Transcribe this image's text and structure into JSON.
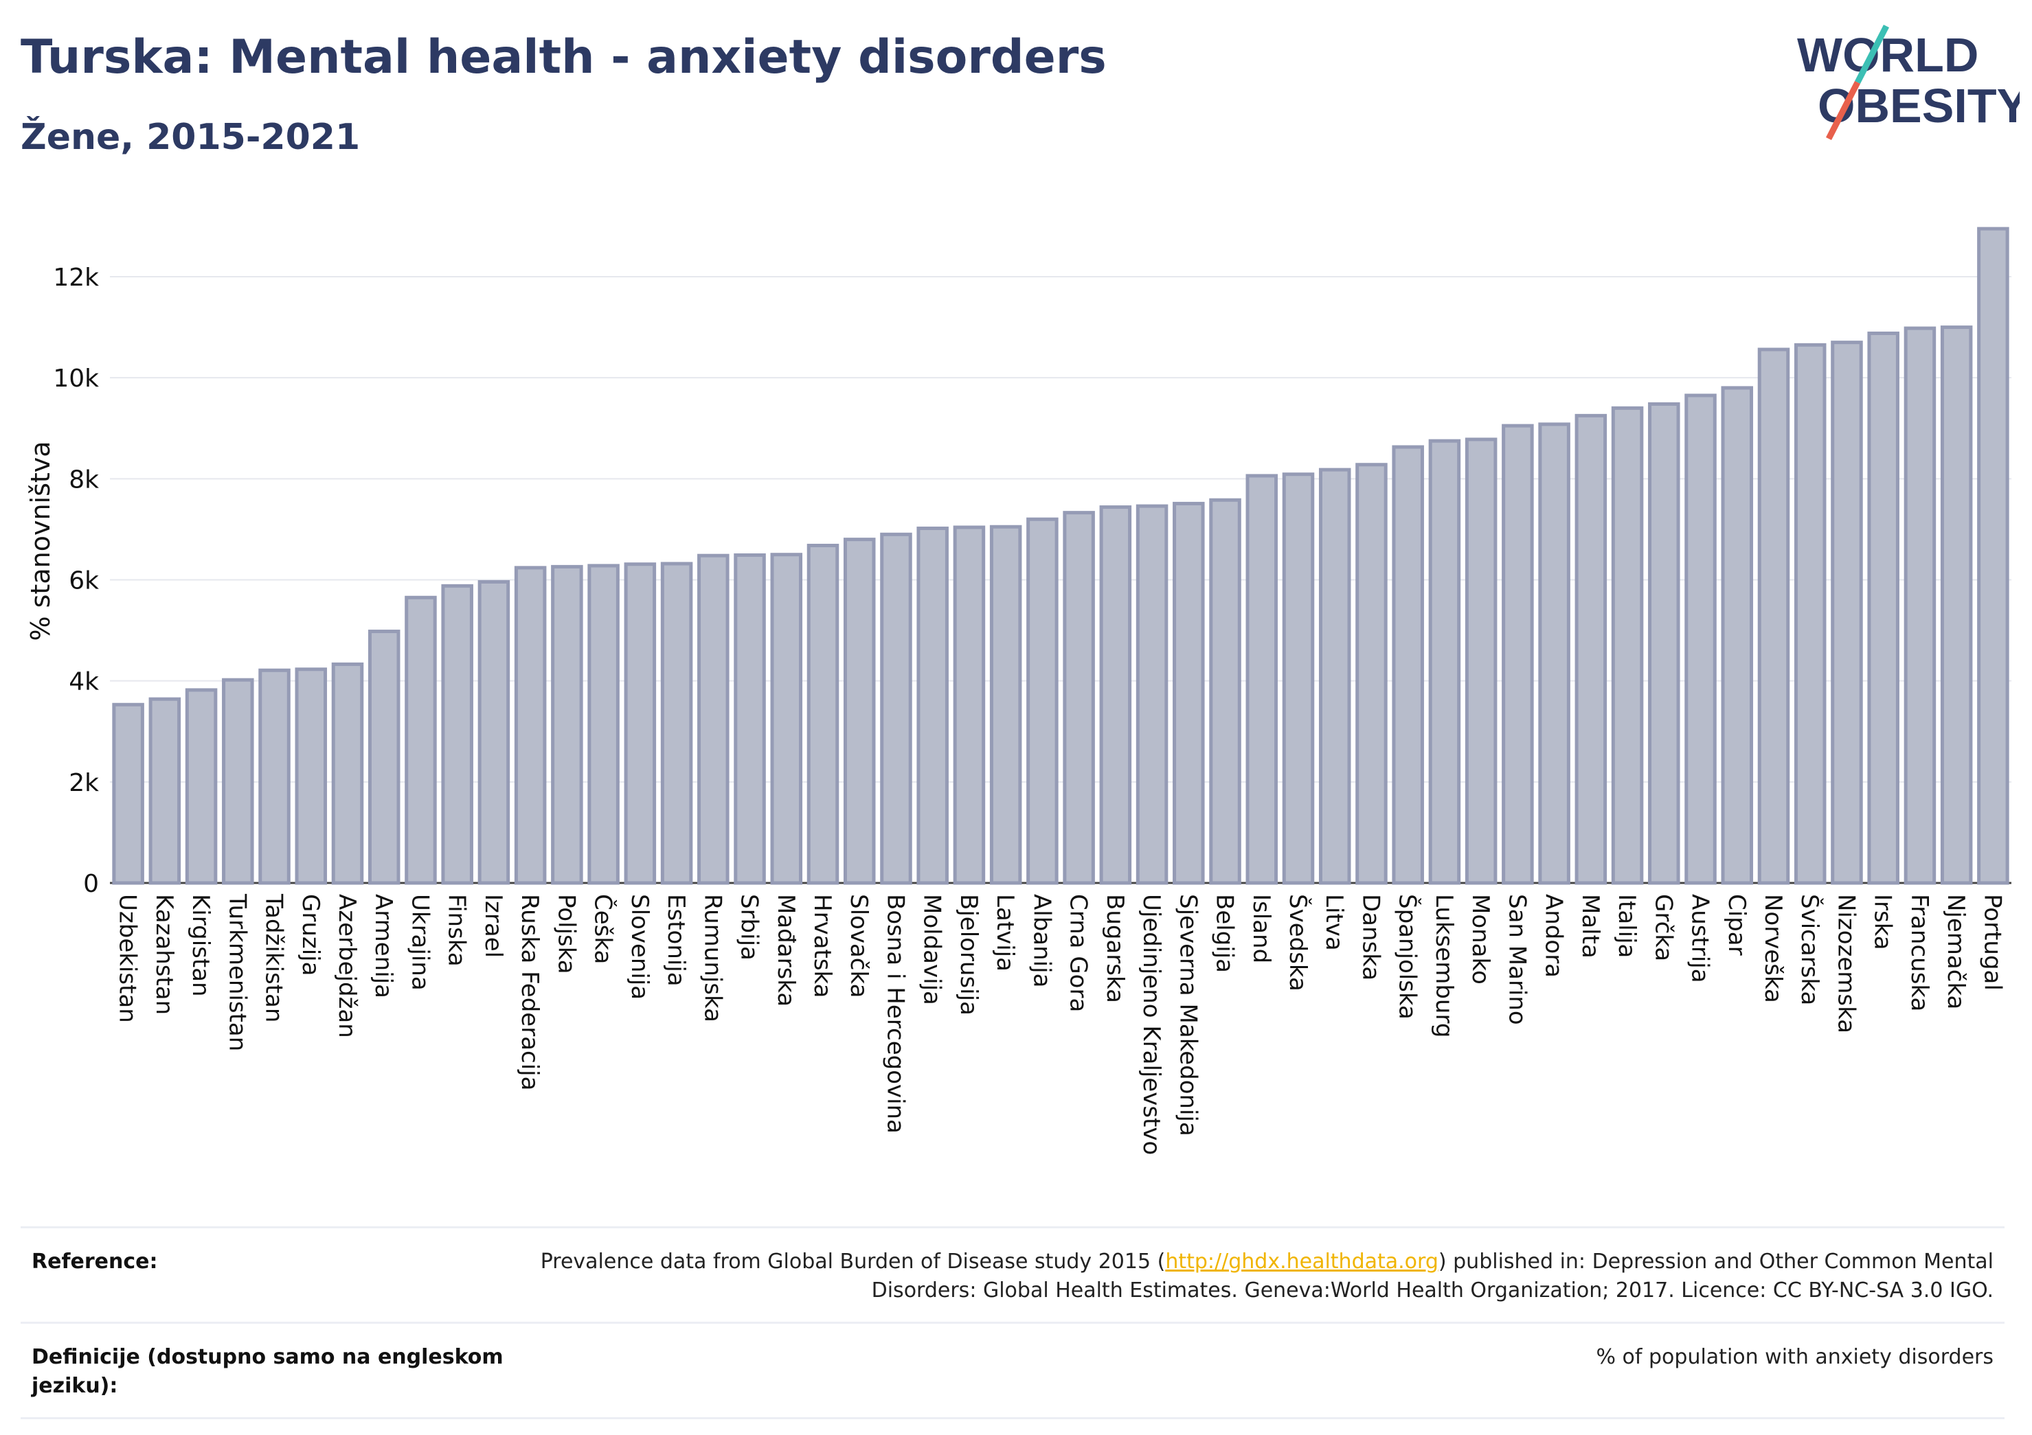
{
  "header": {
    "title": "Turska: Mental health - anxiety disorders",
    "subtitle": "Žene, 2015-2021"
  },
  "logo": {
    "line1": "WORLD",
    "line2": "OBESITY",
    "colors": {
      "text": "#2d3a63",
      "slash_teal": "#3bbfb4",
      "slash_red": "#e8604c"
    }
  },
  "chart_data": {
    "type": "bar",
    "ylabel": "% stanovništva",
    "yticks": [
      0,
      2000,
      4000,
      6000,
      8000,
      10000,
      12000
    ],
    "ytick_labels": [
      "0",
      "2k",
      "4k",
      "6k",
      "8k",
      "10k",
      "12k"
    ],
    "ylim": [
      0,
      13400
    ],
    "grid": true,
    "bar_fill": "#b7bccb",
    "bar_stroke": "#959bb5",
    "categories": [
      "Uzbekistan",
      "Kazahstan",
      "Kirgistan",
      "Turkmenistan",
      "Tadžikistan",
      "Gruzija",
      "Azerbejdžan",
      "Armenija",
      "Ukrajina",
      "Finska",
      "Izrael",
      "Ruska Federacija",
      "Poljska",
      "Češka",
      "Slovenija",
      "Estonija",
      "Rumunjska",
      "Srbija",
      "Mađarska",
      "Hrvatska",
      "Slovačka",
      "Bosna i Hercegovina",
      "Moldavija",
      "Bjelorusija",
      "Latvija",
      "Albanija",
      "Crna Gora",
      "Bugarska",
      "Ujedinjeno Kraljevstvo",
      "Sjeverna Makedonija",
      "Belgija",
      "Island",
      "Švedska",
      "Litva",
      "Danska",
      "Španjolska",
      "Luksemburg",
      "Monako",
      "San Marino",
      "Andora",
      "Malta",
      "Italija",
      "Grčka",
      "Austrija",
      "Cipar",
      "Norveška",
      "Švicarska",
      "Nizozemska",
      "Irska",
      "Francuska",
      "Njemačka",
      "Portugal"
    ],
    "values": [
      3530,
      3640,
      3820,
      4020,
      4210,
      4230,
      4330,
      4980,
      5650,
      5880,
      5960,
      6240,
      6260,
      6280,
      6310,
      6320,
      6480,
      6490,
      6500,
      6680,
      6800,
      6900,
      7020,
      7040,
      7050,
      7200,
      7330,
      7440,
      7460,
      7510,
      7580,
      8060,
      8090,
      8180,
      8280,
      8630,
      8750,
      8780,
      9050,
      9080,
      9250,
      9400,
      9480,
      9650,
      9800,
      10560,
      10650,
      10700,
      10880,
      10980,
      11000,
      12950
    ]
  },
  "reference": {
    "rows": [
      {
        "label": "Reference:",
        "value_before": "Prevalence data from Global Burden of Disease study 2015 (",
        "link": "http://ghdx.healthdata.org",
        "value_after": ") published in: Depression and Other Common Mental Disorders: Global Health Estimates. Geneva:World Health Organization; 2017. Licence: CC BY-NC-SA 3.0 IGO."
      },
      {
        "label": "Definicije (dostupno samo na engleskom jeziku):",
        "value": "% of population with anxiety disorders"
      }
    ]
  }
}
